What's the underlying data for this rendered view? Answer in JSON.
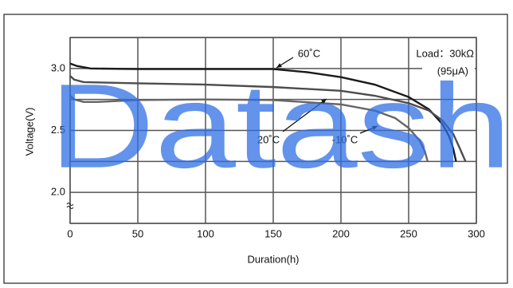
{
  "chart_data": {
    "type": "line",
    "ylabel": "Voltage(V)",
    "xlabel": "Duration(h)",
    "annotations": [
      "Load：30kΩ",
      "(95μA)"
    ],
    "watermark": "Datash",
    "xlim": [
      0,
      300
    ],
    "xticks": [
      0,
      50,
      100,
      150,
      200,
      250,
      300
    ],
    "ylim": [
      1.75,
      3.25
    ],
    "yticks": [
      {
        "value": 1.75,
        "label": null
      },
      {
        "value": 2.0,
        "label": "2.0"
      },
      {
        "value": 2.25,
        "label": null
      },
      {
        "value": 2.5,
        "label": "2.5"
      },
      {
        "value": 2.75,
        "label": null
      },
      {
        "value": 3.0,
        "label": "3.0"
      },
      {
        "value": 3.25,
        "label": null
      }
    ],
    "grid": true,
    "series": [
      {
        "name": "60˚C",
        "color": "#1a1a1a",
        "x": [
          0,
          5,
          15,
          50,
          100,
          150,
          175,
          200,
          225,
          250,
          265,
          275,
          280,
          283,
          285
        ],
        "values": [
          3.04,
          3.02,
          3.0,
          2.995,
          2.995,
          2.995,
          2.97,
          2.93,
          2.87,
          2.77,
          2.67,
          2.55,
          2.45,
          2.35,
          2.25
        ]
      },
      {
        "name": "20˚C",
        "color": "#4d4d4d",
        "x": [
          0,
          3,
          10,
          50,
          100,
          150,
          200,
          225,
          250,
          265,
          275,
          283,
          288,
          292
        ],
        "values": [
          2.94,
          2.91,
          2.89,
          2.88,
          2.87,
          2.85,
          2.82,
          2.78,
          2.72,
          2.66,
          2.58,
          2.47,
          2.35,
          2.25
        ]
      },
      {
        "name": "-10˚C",
        "color": "#666666",
        "x": [
          0,
          3,
          10,
          20,
          50,
          100,
          150,
          200,
          225,
          240,
          250,
          258,
          262,
          264
        ],
        "values": [
          2.78,
          2.75,
          2.73,
          2.73,
          2.745,
          2.75,
          2.745,
          2.71,
          2.66,
          2.6,
          2.52,
          2.42,
          2.33,
          2.25
        ]
      }
    ]
  }
}
